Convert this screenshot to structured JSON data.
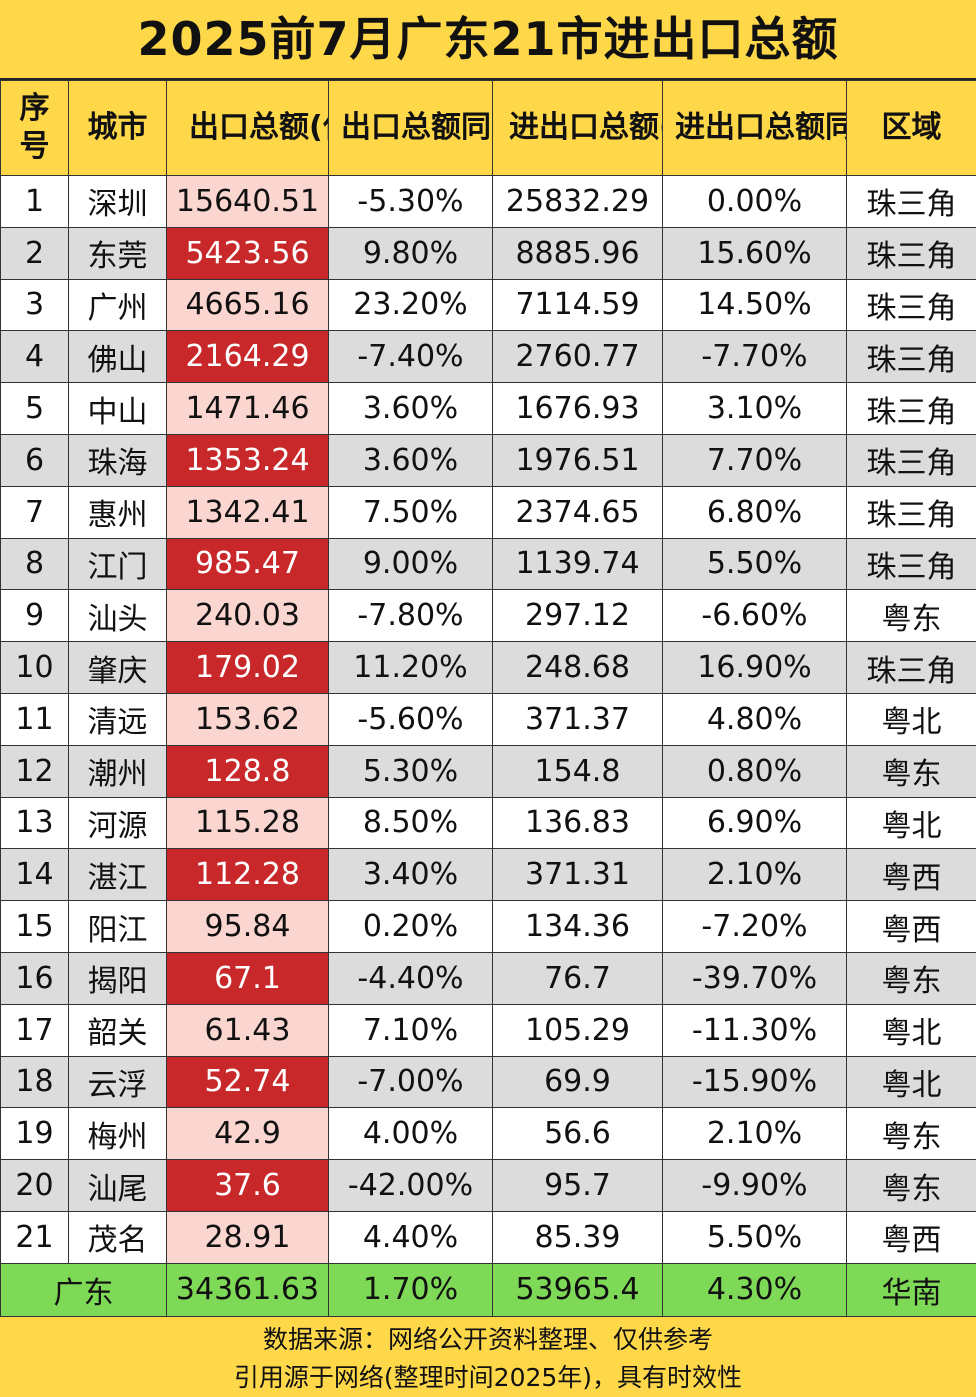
{
  "title": "2025前7月广东21市进出口总额",
  "headers": [
    "序号",
    "城市",
    "出口总额(亿元)",
    "出口总额同比增长",
    "进出口总额(亿元)",
    "进出口总额同比增长",
    "区域"
  ],
  "rows": [
    [
      "1",
      "深圳",
      "15640.51",
      "-5.30%",
      "25832.29",
      "0.00%",
      "珠三角"
    ],
    [
      "2",
      "东莞",
      "5423.56",
      "9.80%",
      "8885.96",
      "15.60%",
      "珠三角"
    ],
    [
      "3",
      "广州",
      "4665.16",
      "23.20%",
      "7114.59",
      "14.50%",
      "珠三角"
    ],
    [
      "4",
      "佛山",
      "2164.29",
      "-7.40%",
      "2760.77",
      "-7.70%",
      "珠三角"
    ],
    [
      "5",
      "中山",
      "1471.46",
      "3.60%",
      "1676.93",
      "3.10%",
      "珠三角"
    ],
    [
      "6",
      "珠海",
      "1353.24",
      "3.60%",
      "1976.51",
      "7.70%",
      "珠三角"
    ],
    [
      "7",
      "惠州",
      "1342.41",
      "7.50%",
      "2374.65",
      "6.80%",
      "珠三角"
    ],
    [
      "8",
      "江门",
      "985.47",
      "9.00%",
      "1139.74",
      "5.50%",
      "珠三角"
    ],
    [
      "9",
      "汕头",
      "240.03",
      "-7.80%",
      "297.12",
      "-6.60%",
      "粤东"
    ],
    [
      "10",
      "肇庆",
      "179.02",
      "11.20%",
      "248.68",
      "16.90%",
      "珠三角"
    ],
    [
      "11",
      "清远",
      "153.62",
      "-5.60%",
      "371.37",
      "4.80%",
      "粤北"
    ],
    [
      "12",
      "潮州",
      "128.8",
      "5.30%",
      "154.8",
      "0.80%",
      "粤东"
    ],
    [
      "13",
      "河源",
      "115.28",
      "8.50%",
      "136.83",
      "6.90%",
      "粤北"
    ],
    [
      "14",
      "湛江",
      "112.28",
      "3.40%",
      "371.31",
      "2.10%",
      "粤西"
    ],
    [
      "15",
      "阳江",
      "95.84",
      "0.20%",
      "134.36",
      "-7.20%",
      "粤西"
    ],
    [
      "16",
      "揭阳",
      "67.1",
      "-4.40%",
      "76.7",
      "-39.70%",
      "粤东"
    ],
    [
      "17",
      "韶关",
      "61.43",
      "7.10%",
      "105.29",
      "-11.30%",
      "粤北"
    ],
    [
      "18",
      "云浮",
      "52.74",
      "-7.00%",
      "69.9",
      "-15.90%",
      "粤北"
    ],
    [
      "19",
      "梅州",
      "42.9",
      "4.00%",
      "56.6",
      "2.10%",
      "粤东"
    ],
    [
      "20",
      "汕尾",
      "37.6",
      "-42.00%",
      "95.7",
      "-9.90%",
      "粤东"
    ],
    [
      "21",
      "茂名",
      "28.91",
      "4.40%",
      "85.39",
      "5.50%",
      "粤西"
    ]
  ],
  "total": {
    "label": "广东",
    "export": "34361.63",
    "export_growth": "1.70%",
    "total": "53965.4",
    "total_growth": "4.30%",
    "region": "华南"
  },
  "footer": {
    "line1": "数据来源：网络公开资料整理、仅供参考",
    "line2": "引用源于网络(整理时间2025年)，具有时效性"
  },
  "colors": {
    "background": "#ffd84a",
    "row_even": "#dcdcdc",
    "export_light": "#fbd5cf",
    "export_dark": "#c9282a",
    "total_row": "#7ed957"
  }
}
